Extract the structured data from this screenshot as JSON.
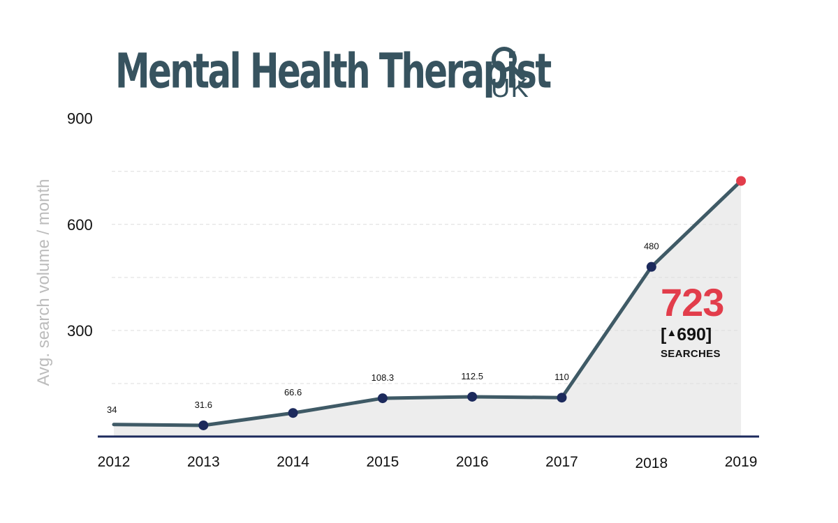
{
  "logo": {
    "title": "Mental Health Therapist",
    "sub": "UK",
    "icon": "magnifier-icon"
  },
  "chart_data": {
    "type": "line",
    "title": "Mental Health Therapist UK",
    "xlabel": "",
    "ylabel": "Avg. search volume / month",
    "categories": [
      "2012",
      "2013",
      "2014",
      "2015",
      "2016",
      "2017",
      "2018",
      "2019"
    ],
    "values": [
      34,
      31.6,
      66.6,
      108.3,
      112.5,
      110,
      480,
      723
    ],
    "value_labels": [
      "34",
      "31.6",
      "66.6",
      "108.3",
      "112.5",
      "110",
      "480",
      ""
    ],
    "ylim": [
      0,
      900
    ],
    "yticks": [
      "300",
      "600",
      "900"
    ],
    "grid": true,
    "colors": {
      "line": "#3f5a66",
      "point": "#1c2a5c",
      "last_point": "#e23d4b",
      "axis": "#1c2a5c",
      "area": "#ededed",
      "grid": "#dddddd"
    }
  },
  "callout": {
    "value": "723",
    "open_bracket": "[",
    "arrow": "▲",
    "change": "690",
    "close_bracket": "]",
    "unit": "SEARCHES"
  }
}
